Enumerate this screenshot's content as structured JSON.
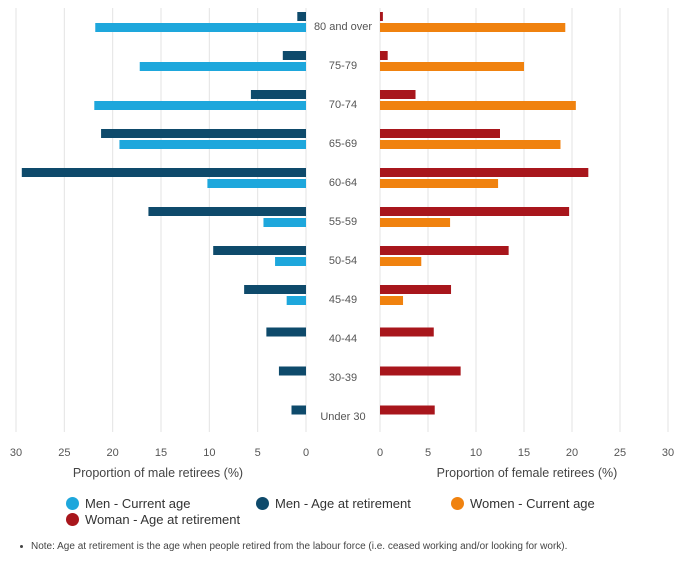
{
  "chart_data": {
    "type": "bar",
    "orientation": "horizontal",
    "layout": "back-to-back",
    "categories": [
      "80 and over",
      "75-79",
      "70-74",
      "65-69",
      "60-64",
      "55-59",
      "50-54",
      "45-49",
      "40-44",
      "30-39",
      "Under 30"
    ],
    "left_panel": {
      "xlabel": "Proportion of male retirees (%)",
      "xlim": [
        0,
        30
      ],
      "ticks": [
        30,
        25,
        20,
        15,
        10,
        5,
        0
      ],
      "series": [
        {
          "name": "Men - Age at retirement",
          "color": "#0e4a6b",
          "values": [
            0.9,
            2.4,
            5.7,
            21.2,
            29.4,
            16.3,
            9.6,
            6.4,
            4.1,
            2.8,
            1.5
          ]
        },
        {
          "name": "Men - Current age",
          "color": "#1ea7dc",
          "values": [
            21.8,
            17.2,
            21.9,
            19.3,
            10.2,
            4.4,
            3.2,
            2.0,
            null,
            null,
            null
          ]
        }
      ]
    },
    "right_panel": {
      "xlabel": "Proportion of female retirees (%)",
      "xlim": [
        0,
        30
      ],
      "ticks": [
        0,
        5,
        10,
        15,
        20,
        25,
        30
      ],
      "series": [
        {
          "name": "Woman - Age at retirement",
          "color": "#a8161c",
          "values": [
            0.3,
            0.8,
            3.7,
            12.5,
            21.7,
            19.7,
            13.4,
            7.4,
            5.6,
            8.4,
            5.7
          ]
        },
        {
          "name": "Women - Current age",
          "color": "#f0820f",
          "values": [
            19.3,
            15.0,
            20.4,
            18.8,
            12.3,
            7.3,
            4.3,
            2.4,
            null,
            null,
            null
          ]
        }
      ]
    },
    "legend": {
      "placement": "bottom",
      "items": [
        {
          "label": "Men - Current age",
          "color": "#1ea7dc"
        },
        {
          "label": "Men - Age at retirement",
          "color": "#0e4a6b"
        },
        {
          "label": "Women - Current age",
          "color": "#f0820f"
        },
        {
          "label": "Woman - Age at retirement",
          "color": "#a8161c"
        }
      ]
    },
    "grid": true
  },
  "note": "Note: Age at retirement is the age when people retired from the labour force (i.e. ceased working and/or looking for work)."
}
